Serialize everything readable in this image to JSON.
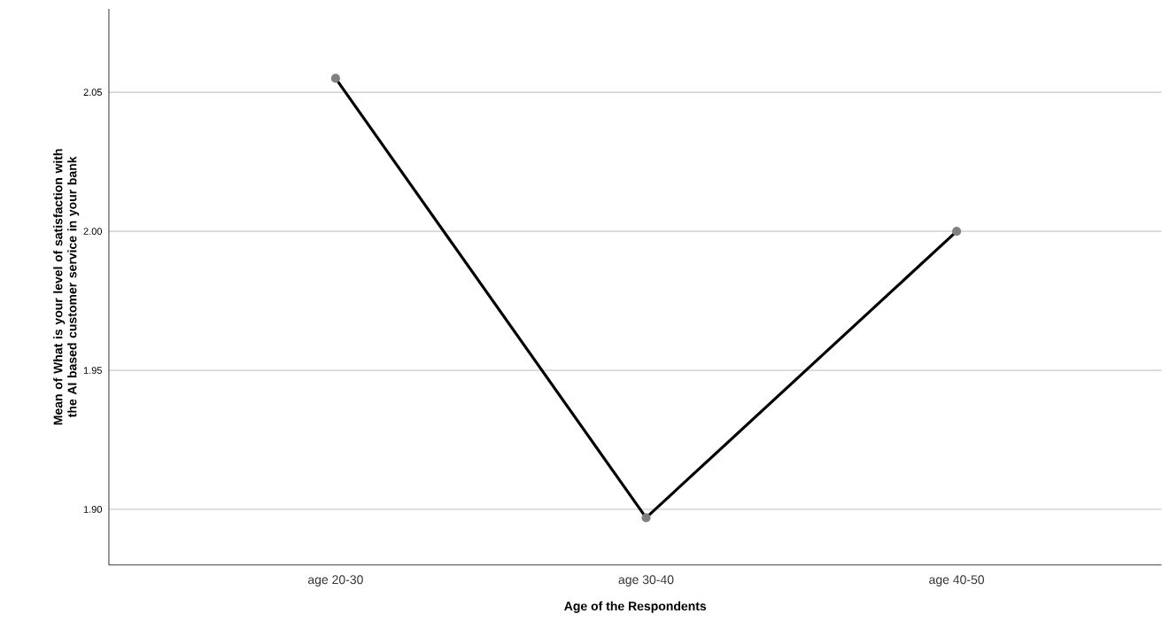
{
  "chart_data": {
    "type": "line",
    "xlabel": "Age of the Respondents",
    "ylabel": "Mean of What is your level of satisfaction with the AI based customer service in your bank",
    "categories": [
      "age 20-30",
      "age 30-40",
      "age 40-50"
    ],
    "series": [
      {
        "color": "#000000",
        "values": [
          2.055,
          1.897,
          2.0
        ]
      }
    ],
    "ylim": [
      1.88,
      2.08
    ],
    "yticks": [
      {
        "value": 1.9,
        "label": "1.90"
      },
      {
        "value": 1.95,
        "label": "1.95"
      },
      {
        "value": 2.0,
        "label": "2.00"
      },
      {
        "value": 2.05,
        "label": "2.05"
      }
    ],
    "grid": "y",
    "marker": "circle",
    "line_style": "solid"
  }
}
